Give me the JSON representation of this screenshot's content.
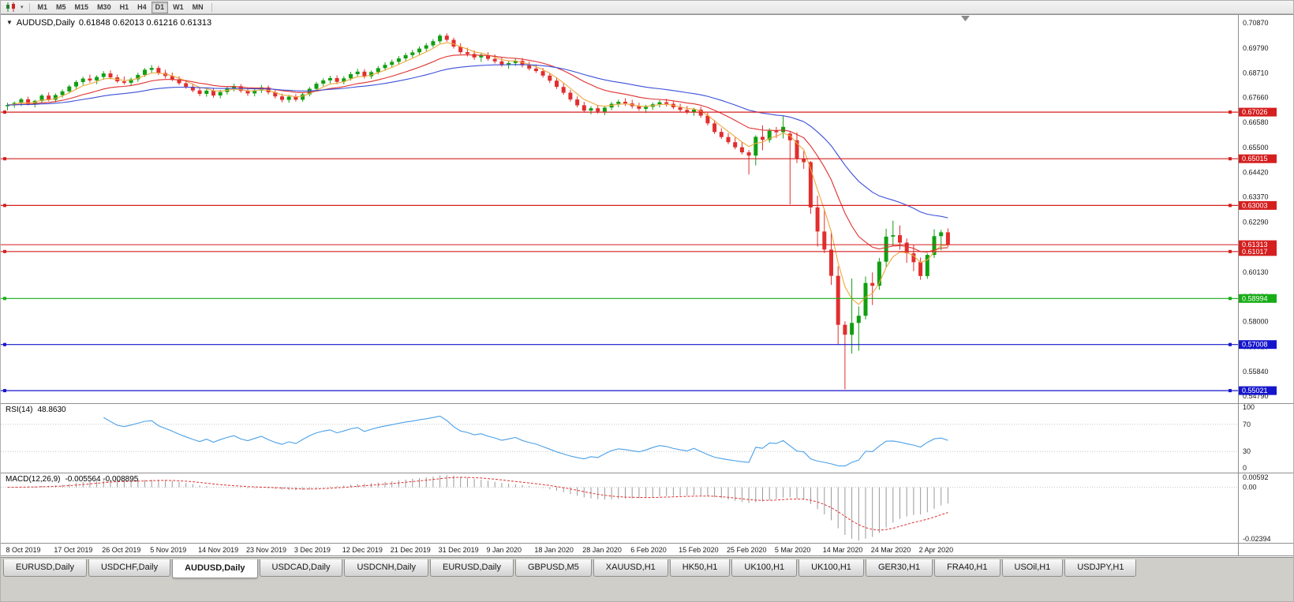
{
  "toolbar": {
    "timeframes": [
      "M1",
      "M5",
      "M15",
      "M30",
      "H1",
      "H4",
      "D1",
      "W1",
      "MN"
    ],
    "active": "D1"
  },
  "chart_data": {
    "type": "candlestick",
    "title": "AUDUSD,Daily",
    "ohlc_display": "0.61848 0.62013 0.61216 0.61313",
    "up_color": "#119f11",
    "down_color": "#e22e2e",
    "x_labels": [
      "8 Oct 2019",
      "17 Oct 2019",
      "26 Oct 2019",
      "5 Nov 2019",
      "14 Nov 2019",
      "23 Nov 2019",
      "3 Dec 2019",
      "12 Dec 2019",
      "21 Dec 2019",
      "31 Dec 2019",
      "9 Jan 2020",
      "18 Jan 2020",
      "28 Jan 2020",
      "6 Feb 2020",
      "15 Feb 2020",
      "25 Feb 2020",
      "5 Mar 2020",
      "14 Mar 2020",
      "24 Mar 2020",
      "2 Apr 2020"
    ],
    "y_axis_labels": [
      "0.70870",
      "0.69790",
      "0.68710",
      "0.67660",
      "0.66580",
      "0.65500",
      "0.64420",
      "0.63370",
      "0.62290",
      "0.61210",
      "0.60130",
      "0.59080",
      "0.58000",
      "0.56920",
      "0.55840",
      "0.54790"
    ],
    "y_range": {
      "max": 0.7121,
      "min": 0.5455
    },
    "candles": [
      [
        0.6728,
        0.6743,
        0.671,
        0.6733
      ],
      [
        0.6733,
        0.6748,
        0.6721,
        0.6742
      ],
      [
        0.6742,
        0.6764,
        0.6729,
        0.6758
      ],
      [
        0.6758,
        0.6769,
        0.6731,
        0.6739
      ],
      [
        0.6739,
        0.6756,
        0.6723,
        0.6751
      ],
      [
        0.6751,
        0.6781,
        0.6744,
        0.6774
      ],
      [
        0.6774,
        0.6787,
        0.6749,
        0.6756
      ],
      [
        0.6756,
        0.6783,
        0.6745,
        0.6776
      ],
      [
        0.6776,
        0.68,
        0.6765,
        0.6792
      ],
      [
        0.6792,
        0.682,
        0.6783,
        0.6813
      ],
      [
        0.6813,
        0.684,
        0.6801,
        0.6832
      ],
      [
        0.6832,
        0.6855,
        0.6819,
        0.6847
      ],
      [
        0.6847,
        0.6864,
        0.6829,
        0.6839
      ],
      [
        0.6839,
        0.6861,
        0.6823,
        0.6854
      ],
      [
        0.6854,
        0.6879,
        0.6842,
        0.6869
      ],
      [
        0.6869,
        0.6882,
        0.6844,
        0.6852
      ],
      [
        0.6852,
        0.6864,
        0.6828,
        0.6835
      ],
      [
        0.6835,
        0.6856,
        0.6821,
        0.6829
      ],
      [
        0.6829,
        0.6851,
        0.6815,
        0.6844
      ],
      [
        0.6844,
        0.6872,
        0.6833,
        0.6863
      ],
      [
        0.6863,
        0.6892,
        0.6855,
        0.6885
      ],
      [
        0.6885,
        0.6905,
        0.6871,
        0.6893
      ],
      [
        0.6893,
        0.6902,
        0.6862,
        0.6871
      ],
      [
        0.6871,
        0.6885,
        0.6848,
        0.6858
      ],
      [
        0.6858,
        0.6873,
        0.6836,
        0.6844
      ],
      [
        0.6844,
        0.6857,
        0.6819,
        0.6827
      ],
      [
        0.6827,
        0.6841,
        0.6803,
        0.6812
      ],
      [
        0.6812,
        0.6826,
        0.6788,
        0.6796
      ],
      [
        0.6796,
        0.6809,
        0.6771,
        0.6781
      ],
      [
        0.6781,
        0.6804,
        0.6769,
        0.6795
      ],
      [
        0.6795,
        0.6807,
        0.6765,
        0.6774
      ],
      [
        0.6774,
        0.6798,
        0.6762,
        0.6789
      ],
      [
        0.6789,
        0.6812,
        0.6778,
        0.6803
      ],
      [
        0.6803,
        0.6825,
        0.6792,
        0.6814
      ],
      [
        0.6814,
        0.6823,
        0.6786,
        0.6794
      ],
      [
        0.6794,
        0.6808,
        0.6772,
        0.6783
      ],
      [
        0.6783,
        0.6804,
        0.677,
        0.6796
      ],
      [
        0.6796,
        0.6819,
        0.6785,
        0.6809
      ],
      [
        0.6809,
        0.6817,
        0.6779,
        0.6788
      ],
      [
        0.6788,
        0.6799,
        0.6761,
        0.677
      ],
      [
        0.677,
        0.6782,
        0.6745,
        0.6755
      ],
      [
        0.6755,
        0.6777,
        0.6743,
        0.6769
      ],
      [
        0.6769,
        0.678,
        0.6748,
        0.6756
      ],
      [
        0.6756,
        0.6788,
        0.6747,
        0.6779
      ],
      [
        0.6779,
        0.6811,
        0.677,
        0.6803
      ],
      [
        0.6803,
        0.6833,
        0.6795,
        0.6825
      ],
      [
        0.6825,
        0.6848,
        0.6814,
        0.6839
      ],
      [
        0.6839,
        0.6859,
        0.6826,
        0.6849
      ],
      [
        0.6849,
        0.6861,
        0.6823,
        0.6833
      ],
      [
        0.6833,
        0.6857,
        0.6822,
        0.6848
      ],
      [
        0.6848,
        0.6876,
        0.6839,
        0.6866
      ],
      [
        0.6866,
        0.6889,
        0.6854,
        0.6877
      ],
      [
        0.6877,
        0.6888,
        0.6847,
        0.6857
      ],
      [
        0.6857,
        0.6882,
        0.6846,
        0.6875
      ],
      [
        0.6875,
        0.6901,
        0.6865,
        0.6892
      ],
      [
        0.6892,
        0.6917,
        0.6881,
        0.6906
      ],
      [
        0.6906,
        0.6929,
        0.6895,
        0.6919
      ],
      [
        0.6919,
        0.6944,
        0.6908,
        0.6934
      ],
      [
        0.6934,
        0.6958,
        0.6923,
        0.6948
      ],
      [
        0.6948,
        0.6971,
        0.6937,
        0.696
      ],
      [
        0.696,
        0.6986,
        0.695,
        0.6976
      ],
      [
        0.6976,
        0.7,
        0.6965,
        0.699
      ],
      [
        0.699,
        0.7017,
        0.6981,
        0.7008
      ],
      [
        0.7008,
        0.7039,
        0.6999,
        0.7032
      ],
      [
        0.7032,
        0.7042,
        0.7006,
        0.7014
      ],
      [
        0.7014,
        0.7023,
        0.6976,
        0.6985
      ],
      [
        0.6985,
        0.6999,
        0.6952,
        0.6961
      ],
      [
        0.6961,
        0.698,
        0.6942,
        0.6953
      ],
      [
        0.6953,
        0.6968,
        0.6928,
        0.6938
      ],
      [
        0.6938,
        0.6957,
        0.6919,
        0.6947
      ],
      [
        0.6947,
        0.6961,
        0.6924,
        0.6932
      ],
      [
        0.6932,
        0.6951,
        0.6912,
        0.6921
      ],
      [
        0.6921,
        0.6938,
        0.6898,
        0.6906
      ],
      [
        0.6906,
        0.6925,
        0.6889,
        0.6914
      ],
      [
        0.6914,
        0.6933,
        0.6901,
        0.6923
      ],
      [
        0.6923,
        0.6936,
        0.6895,
        0.6904
      ],
      [
        0.6904,
        0.692,
        0.6882,
        0.689
      ],
      [
        0.689,
        0.6908,
        0.6871,
        0.6879
      ],
      [
        0.6879,
        0.6893,
        0.6851,
        0.686
      ],
      [
        0.686,
        0.6872,
        0.6828,
        0.6838
      ],
      [
        0.6838,
        0.685,
        0.6802,
        0.6811
      ],
      [
        0.6811,
        0.6826,
        0.6777,
        0.6786
      ],
      [
        0.6786,
        0.6798,
        0.6748,
        0.6757
      ],
      [
        0.6757,
        0.677,
        0.6723,
        0.6732
      ],
      [
        0.6732,
        0.6747,
        0.67,
        0.6709
      ],
      [
        0.6709,
        0.6728,
        0.6693,
        0.6719
      ],
      [
        0.6719,
        0.6733,
        0.6696,
        0.6705
      ],
      [
        0.6705,
        0.6729,
        0.669,
        0.6722
      ],
      [
        0.6722,
        0.6746,
        0.6711,
        0.6738
      ],
      [
        0.6738,
        0.6756,
        0.6724,
        0.6747
      ],
      [
        0.6747,
        0.6762,
        0.6729,
        0.674
      ],
      [
        0.674,
        0.6756,
        0.6718,
        0.6728
      ],
      [
        0.6728,
        0.6743,
        0.6708,
        0.6717
      ],
      [
        0.6717,
        0.6734,
        0.6699,
        0.6725
      ],
      [
        0.6725,
        0.6744,
        0.6712,
        0.6736
      ],
      [
        0.6736,
        0.6754,
        0.6723,
        0.6745
      ],
      [
        0.6745,
        0.676,
        0.6727,
        0.6738
      ],
      [
        0.6738,
        0.675,
        0.6715,
        0.6723
      ],
      [
        0.6723,
        0.6739,
        0.6704,
        0.6712
      ],
      [
        0.6712,
        0.6729,
        0.6694,
        0.6703
      ],
      [
        0.6703,
        0.6721,
        0.6686,
        0.6713
      ],
      [
        0.6713,
        0.6726,
        0.6678,
        0.6687
      ],
      [
        0.6687,
        0.6699,
        0.6645,
        0.6654
      ],
      [
        0.6654,
        0.6668,
        0.6608,
        0.6617
      ],
      [
        0.6617,
        0.6633,
        0.6587,
        0.6595
      ],
      [
        0.6595,
        0.6612,
        0.6564,
        0.6573
      ],
      [
        0.6573,
        0.6593,
        0.6542,
        0.6551
      ],
      [
        0.6551,
        0.6575,
        0.652,
        0.6529
      ],
      [
        0.6529,
        0.6539,
        0.6434,
        0.6515
      ],
      [
        0.6515,
        0.6603,
        0.6473,
        0.6596
      ],
      [
        0.6596,
        0.6645,
        0.6538,
        0.6583
      ],
      [
        0.6583,
        0.6633,
        0.6571,
        0.6622
      ],
      [
        0.6622,
        0.6639,
        0.6591,
        0.6616
      ],
      [
        0.6616,
        0.6685,
        0.6589,
        0.6639
      ],
      [
        0.661,
        0.6621,
        0.6305,
        0.6581
      ],
      [
        0.6581,
        0.6615,
        0.6483,
        0.6501
      ],
      [
        0.6501,
        0.6535,
        0.6458,
        0.6487
      ],
      [
        0.6487,
        0.6492,
        0.6264,
        0.6292
      ],
      [
        0.6292,
        0.6342,
        0.6123,
        0.6188
      ],
      [
        0.6188,
        0.6285,
        0.6095,
        0.611
      ],
      [
        0.611,
        0.619,
        0.5958,
        0.5997
      ],
      [
        0.5997,
        0.6038,
        0.5701,
        0.5786
      ],
      [
        0.5786,
        0.5801,
        0.5508,
        0.5743
      ],
      [
        0.5743,
        0.5985,
        0.5662,
        0.5794
      ],
      [
        0.5794,
        0.5865,
        0.5674,
        0.5825
      ],
      [
        0.5825,
        0.5994,
        0.5809,
        0.5966
      ],
      [
        0.5966,
        0.6012,
        0.5871,
        0.5954
      ],
      [
        0.5954,
        0.6074,
        0.5937,
        0.6058
      ],
      [
        0.6058,
        0.62,
        0.6034,
        0.6166
      ],
      [
        0.6166,
        0.6235,
        0.6126,
        0.6172
      ],
      [
        0.6172,
        0.6214,
        0.611,
        0.614
      ],
      [
        0.614,
        0.6158,
        0.6053,
        0.6094
      ],
      [
        0.6094,
        0.613,
        0.6017,
        0.6056
      ],
      [
        0.6056,
        0.6076,
        0.598,
        0.5996
      ],
      [
        0.5996,
        0.6094,
        0.5984,
        0.6087
      ],
      [
        0.6087,
        0.6198,
        0.6074,
        0.6168
      ],
      [
        0.6168,
        0.6195,
        0.6107,
        0.61848
      ],
      [
        0.61848,
        0.62013,
        0.61216,
        0.61313
      ]
    ],
    "moving_averages": [
      {
        "name": "ma-fast-orange",
        "period": 5,
        "color": "#efa73c"
      },
      {
        "name": "ma-mid-red",
        "period": 16,
        "color": "#e03030"
      },
      {
        "name": "ma-slow-blue",
        "period": 36,
        "color": "#3b4fd8"
      }
    ],
    "hlines": [
      {
        "value": 0.67026,
        "label": "0.67026",
        "color": "#d51e1e"
      },
      {
        "value": 0.65015,
        "label": "0.65015",
        "color": "#d51e1e"
      },
      {
        "value": 0.63003,
        "label": "0.63003",
        "color": "#d51e1e"
      },
      {
        "value": 0.61017,
        "label": "0.61017",
        "color": "#d51e1e"
      },
      {
        "value": 0.58994,
        "label": "0.58994",
        "color": "#17ad17"
      },
      {
        "value": 0.57008,
        "label": "0.57008",
        "color": "#1515cc"
      },
      {
        "value": 0.55021,
        "label": "0.55021",
        "color": "#1515cc"
      }
    ],
    "current_price": {
      "value": 0.61313,
      "label": "0.61313",
      "color": "#d51e1e"
    },
    "indicators": {
      "rsi": {
        "label": "RSI(14)",
        "value": "48.8630",
        "period": 14,
        "color": "#4aa0e8",
        "axis_labels": [
          {
            "label": "100",
            "value": 100
          },
          {
            "label": "70",
            "value": 70
          },
          {
            "label": "30",
            "value": 30
          },
          {
            "label": "0",
            "value": 0
          }
        ],
        "level_lines": [
          70,
          30
        ]
      },
      "macd": {
        "label": "MACD(12,26,9)",
        "value": "-0.005564 -0.008895",
        "fast": 12,
        "slow": 26,
        "signal": 9,
        "histogram_color": "#9a9a9a",
        "signal_color": "#e03030",
        "axis_labels": [
          {
            "label": "0.00592",
            "value": 0.00592
          },
          {
            "label": "0.00",
            "value": 0
          },
          {
            "label": "-0.02394",
            "value": -0.02394
          }
        ],
        "y_range": {
          "max": 0.006,
          "min": -0.024
        }
      }
    }
  },
  "tabs": {
    "items": [
      "EURUSD,Daily",
      "USDCHF,Daily",
      "AUDUSD,Daily",
      "USDCAD,Daily",
      "USDCNH,Daily",
      "EURUSD,Daily",
      "GBPUSD,M5",
      "XAUUSD,H1",
      "HK50,H1",
      "UK100,H1",
      "UK100,H1",
      "GER30,H1",
      "FRA40,H1",
      "USOil,H1",
      "USDJPY,H1"
    ],
    "active_index": 2
  }
}
